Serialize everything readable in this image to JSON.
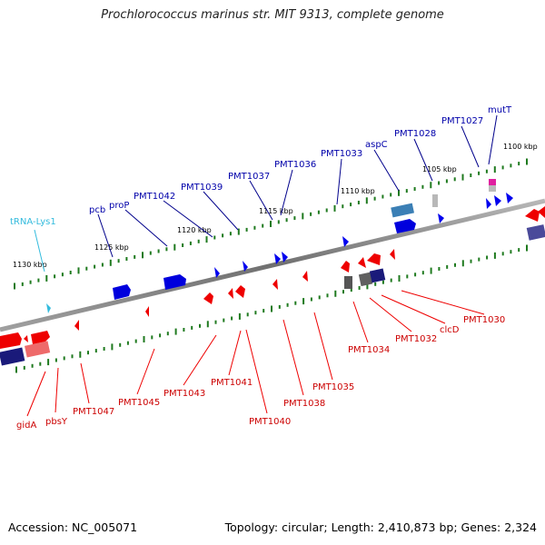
{
  "header": {
    "title": "Prochlorococcus marinus str. MIT 9313, complete genome"
  },
  "footer": {
    "accession": "Accession: NC_005071",
    "summary": "Topology: circular; Length: 2,410,873 bp; Genes: 2,324"
  },
  "colors": {
    "forward_gene": "#0000ee",
    "reverse_gene": "#ee0000",
    "trna": "#33bbdd",
    "backbone": "#808080",
    "tick": "#1f7a1f"
  },
  "scale_labels": [
    "1130 kbp",
    "1125 kbp",
    "1120 kbp",
    "1115 kbp",
    "1110 kbp",
    "1105 kbp",
    "1100 kbp"
  ],
  "upper_labels": [
    "tRNA-Lys1",
    "pcb",
    "proP",
    "PMT1042",
    "PMT1039",
    "PMT1037",
    "PMT1036",
    "PMT1033",
    "aspC",
    "PMT1028",
    "PMT1027",
    "mutT"
  ],
  "lower_labels": [
    "gidA",
    "pbsY",
    "PMT1047",
    "PMT1045",
    "PMT1043",
    "PMT1041",
    "PMT1040",
    "PMT1038",
    "PMT1035",
    "PMT1034",
    "PMT1032",
    "clcD",
    "PMT1030"
  ]
}
